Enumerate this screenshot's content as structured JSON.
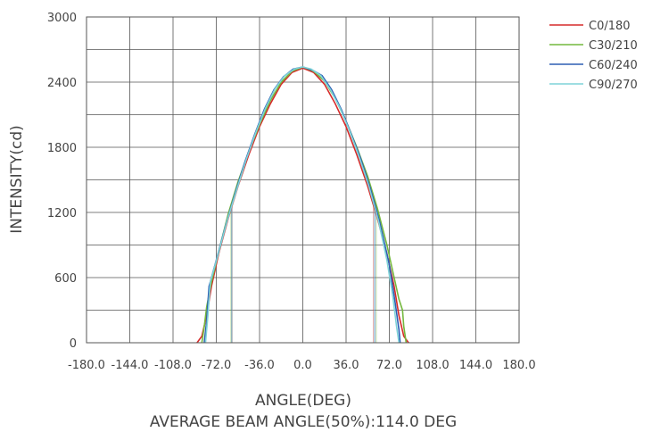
{
  "chart_data": {
    "type": "line",
    "xlabel": "ANGLE(DEG)",
    "ylabel": "INTENSITY(cd)",
    "caption": "AVERAGE BEAM ANGLE(50%):114.0 DEG",
    "xlim": [
      -180,
      180
    ],
    "ylim": [
      0,
      3000
    ],
    "x_ticks": [
      -180,
      -144,
      -108,
      -72,
      -36,
      0,
      36,
      72,
      108,
      144,
      180
    ],
    "x_tick_labels": [
      "-180.0",
      "-144.0",
      "-108.0",
      "-72.0",
      "-36.0",
      "0.0",
      "36.0",
      "72.0",
      "108.0",
      "144.0",
      "180.0"
    ],
    "y_ticks": [
      0,
      600,
      1200,
      1800,
      2400,
      3000
    ],
    "y_tick_labels": [
      "0",
      "600",
      "1200",
      "1800",
      "2400",
      "3000"
    ],
    "x_grid_step": 36,
    "y_grid_step": 300,
    "grid": true,
    "legend_position": "top-right",
    "series": [
      {
        "name": "C0/180",
        "color": "#d62a2a",
        "points": [
          [
            -88,
            0
          ],
          [
            -84,
            60
          ],
          [
            -80,
            250
          ],
          [
            -76,
            520
          ],
          [
            -70,
            820
          ],
          [
            -62,
            1150
          ],
          [
            -54,
            1440
          ],
          [
            -45,
            1730
          ],
          [
            -36,
            1990
          ],
          [
            -27,
            2200
          ],
          [
            -18,
            2380
          ],
          [
            -9,
            2490
          ],
          [
            0,
            2530
          ],
          [
            9,
            2490
          ],
          [
            18,
            2380
          ],
          [
            27,
            2200
          ],
          [
            36,
            1990
          ],
          [
            45,
            1730
          ],
          [
            54,
            1440
          ],
          [
            62,
            1150
          ],
          [
            70,
            820
          ],
          [
            76,
            520
          ],
          [
            80,
            250
          ],
          [
            84,
            60
          ],
          [
            88,
            0
          ]
        ]
      },
      {
        "name": "C30/210",
        "color": "#74b83e",
        "points": [
          [
            -84,
            0
          ],
          [
            -82,
            150
          ],
          [
            -80,
            330
          ],
          [
            -76,
            560
          ],
          [
            -70,
            840
          ],
          [
            -62,
            1190
          ],
          [
            -54,
            1480
          ],
          [
            -45,
            1760
          ],
          [
            -36,
            2010
          ],
          [
            -27,
            2230
          ],
          [
            -18,
            2400
          ],
          [
            -9,
            2500
          ],
          [
            0,
            2540
          ],
          [
            9,
            2500
          ],
          [
            18,
            2410
          ],
          [
            27,
            2250
          ],
          [
            36,
            2040
          ],
          [
            45,
            1800
          ],
          [
            54,
            1530
          ],
          [
            62,
            1240
          ],
          [
            70,
            900
          ],
          [
            76,
            600
          ],
          [
            80,
            400
          ],
          [
            83,
            300
          ],
          [
            84,
            150
          ],
          [
            86,
            0
          ]
        ]
      },
      {
        "name": "C60/240",
        "color": "#2d5fb4",
        "points": [
          [
            -82,
            0
          ],
          [
            -80,
            200
          ],
          [
            -78,
            520
          ],
          [
            -72,
            760
          ],
          [
            -64,
            1090
          ],
          [
            -56,
            1390
          ],
          [
            -48,
            1670
          ],
          [
            -40,
            1920
          ],
          [
            -32,
            2150
          ],
          [
            -24,
            2330
          ],
          [
            -16,
            2450
          ],
          [
            -8,
            2520
          ],
          [
            0,
            2540
          ],
          [
            8,
            2510
          ],
          [
            16,
            2460
          ],
          [
            24,
            2330
          ],
          [
            32,
            2150
          ],
          [
            40,
            1930
          ],
          [
            48,
            1700
          ],
          [
            56,
            1430
          ],
          [
            64,
            1110
          ],
          [
            72,
            720
          ],
          [
            77,
            360
          ],
          [
            80,
            120
          ],
          [
            81,
            0
          ]
        ]
      },
      {
        "name": "C90/270",
        "color": "#7fd3d8",
        "points": [
          [
            -81,
            0
          ],
          [
            -79,
            250
          ],
          [
            -77,
            560
          ],
          [
            -71,
            790
          ],
          [
            -63,
            1120
          ],
          [
            -55,
            1410
          ],
          [
            -47,
            1690
          ],
          [
            -39,
            1940
          ],
          [
            -31,
            2160
          ],
          [
            -23,
            2340
          ],
          [
            -15,
            2460
          ],
          [
            -7,
            2520
          ],
          [
            0,
            2540
          ],
          [
            7,
            2520
          ],
          [
            15,
            2460
          ],
          [
            23,
            2330
          ],
          [
            31,
            2160
          ],
          [
            39,
            1950
          ],
          [
            47,
            1710
          ],
          [
            55,
            1440
          ],
          [
            63,
            1120
          ],
          [
            70,
            760
          ],
          [
            75,
            420
          ],
          [
            78,
            150
          ],
          [
            80,
            0
          ]
        ]
      }
    ]
  }
}
